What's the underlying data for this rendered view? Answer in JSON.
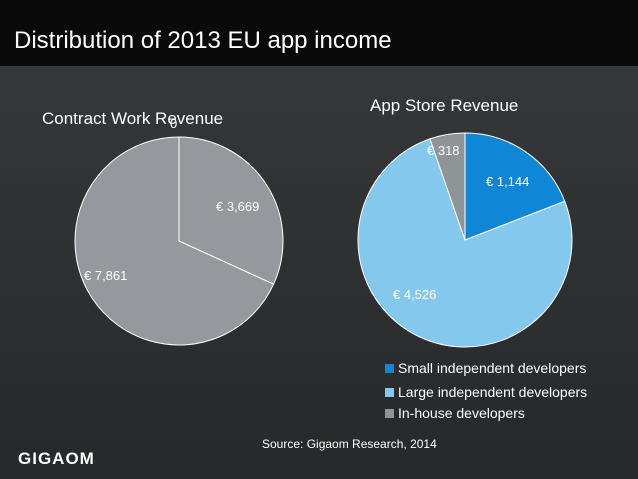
{
  "slide": {
    "title": "Distribution of 2013 EU app income",
    "source": "Source: Gigaom Research, 2014",
    "logo": "GIGAOM"
  },
  "chart_data": [
    {
      "type": "pie",
      "title": "Contract Work Revenue",
      "slices": [
        {
          "label": "Small independent developers",
          "value": 0,
          "display": "0",
          "color": "#0f86d6"
        },
        {
          "label": "Large independent developers",
          "value": 3669,
          "display": "€ 3,669",
          "color": "#95999d"
        },
        {
          "label": "In-house developers",
          "value": 7861,
          "display": "€ 7,861",
          "color": "#95999d"
        }
      ]
    },
    {
      "type": "pie",
      "title": "App Store Revenue",
      "slices": [
        {
          "label": "Small independent developers",
          "value": 1144,
          "display": "€ 1,144",
          "color": "#0f86d6"
        },
        {
          "label": "Large independent developers",
          "value": 4526,
          "display": "€ 4,526",
          "color": "#84c8ee"
        },
        {
          "label": "In-house developers",
          "value": 318,
          "display": "€ 318",
          "color": "#8f9497"
        }
      ]
    }
  ],
  "legend": {
    "placement": "bottom-right",
    "items": [
      {
        "label": "Small independent developers",
        "color": "#0f86d6"
      },
      {
        "label": "Large independent developers",
        "color": "#84c8ee"
      },
      {
        "label": "In-house developers",
        "color": "#8f9497"
      }
    ]
  }
}
